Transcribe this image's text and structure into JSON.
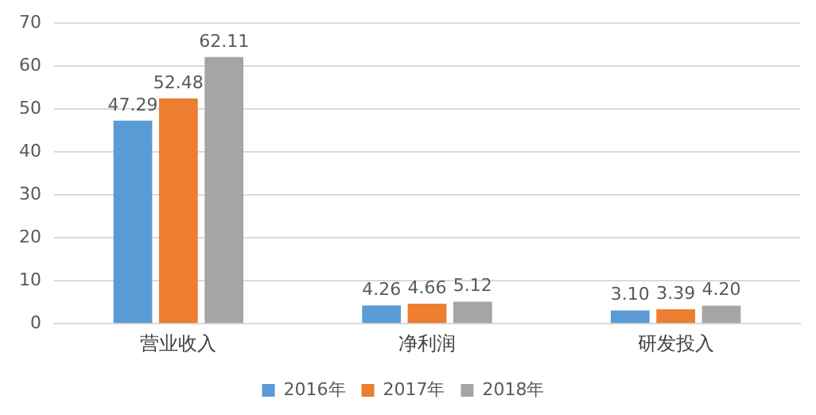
{
  "chart_data": {
    "type": "bar",
    "categories": [
      "营业收入",
      "净利润",
      "研发投入"
    ],
    "series": [
      {
        "name": "2016年",
        "color": "#5b9bd5",
        "values": [
          47.29,
          4.26,
          3.1
        ],
        "value_labels": [
          "47.29",
          "4.26",
          "3.10"
        ]
      },
      {
        "name": "2017年",
        "color": "#ed7d31",
        "values": [
          52.48,
          4.66,
          3.39
        ],
        "value_labels": [
          "52.48",
          "4.66",
          "3.39"
        ]
      },
      {
        "name": "2018年",
        "color": "#a5a5a5",
        "values": [
          62.11,
          5.12,
          4.2
        ],
        "value_labels": [
          "62.11",
          "5.12",
          "4.20"
        ]
      }
    ],
    "ylim": [
      0,
      70
    ],
    "yticks": [
      0,
      10,
      20,
      30,
      40,
      50,
      60,
      70
    ],
    "grid": "y",
    "legend": "bottom"
  }
}
